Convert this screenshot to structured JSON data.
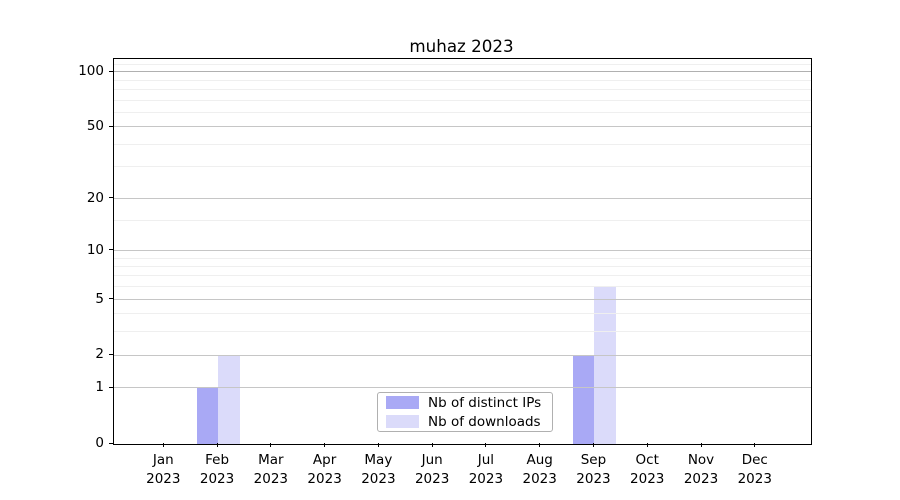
{
  "chart_data": {
    "type": "bar",
    "title": "muhaz 2023",
    "categories": [
      {
        "month": "Jan",
        "year": "2023"
      },
      {
        "month": "Feb",
        "year": "2023"
      },
      {
        "month": "Mar",
        "year": "2023"
      },
      {
        "month": "Apr",
        "year": "2023"
      },
      {
        "month": "May",
        "year": "2023"
      },
      {
        "month": "Jun",
        "year": "2023"
      },
      {
        "month": "Jul",
        "year": "2023"
      },
      {
        "month": "Aug",
        "year": "2023"
      },
      {
        "month": "Sep",
        "year": "2023"
      },
      {
        "month": "Oct",
        "year": "2023"
      },
      {
        "month": "Nov",
        "year": "2023"
      },
      {
        "month": "Dec",
        "year": "2023"
      }
    ],
    "series": [
      {
        "name": "Nb of distinct IPs",
        "color": "#a9a9f5",
        "values": [
          0,
          1,
          0,
          0,
          0,
          0,
          0,
          0,
          2,
          0,
          0,
          0
        ]
      },
      {
        "name": "Nb of downloads",
        "color": "#dbdbfa",
        "values": [
          0,
          2,
          0,
          0,
          0,
          0,
          0,
          0,
          6,
          0,
          0,
          0
        ]
      }
    ],
    "xlabel": "",
    "ylabel": "",
    "yscale": "log1p",
    "ylim": [
      0,
      117
    ],
    "yticks": [
      0,
      1,
      2,
      5,
      10,
      20,
      50,
      100
    ],
    "minor_yticks": [
      3,
      4,
      6,
      7,
      8,
      9,
      15,
      30,
      40,
      60,
      70,
      80,
      90,
      110
    ],
    "grid": true,
    "legend_position": "lower-center"
  },
  "colors": {
    "axis": "#000000",
    "grid_major": "#c6c6c6",
    "grid_minor": "#efefef",
    "background": "#ffffff"
  }
}
